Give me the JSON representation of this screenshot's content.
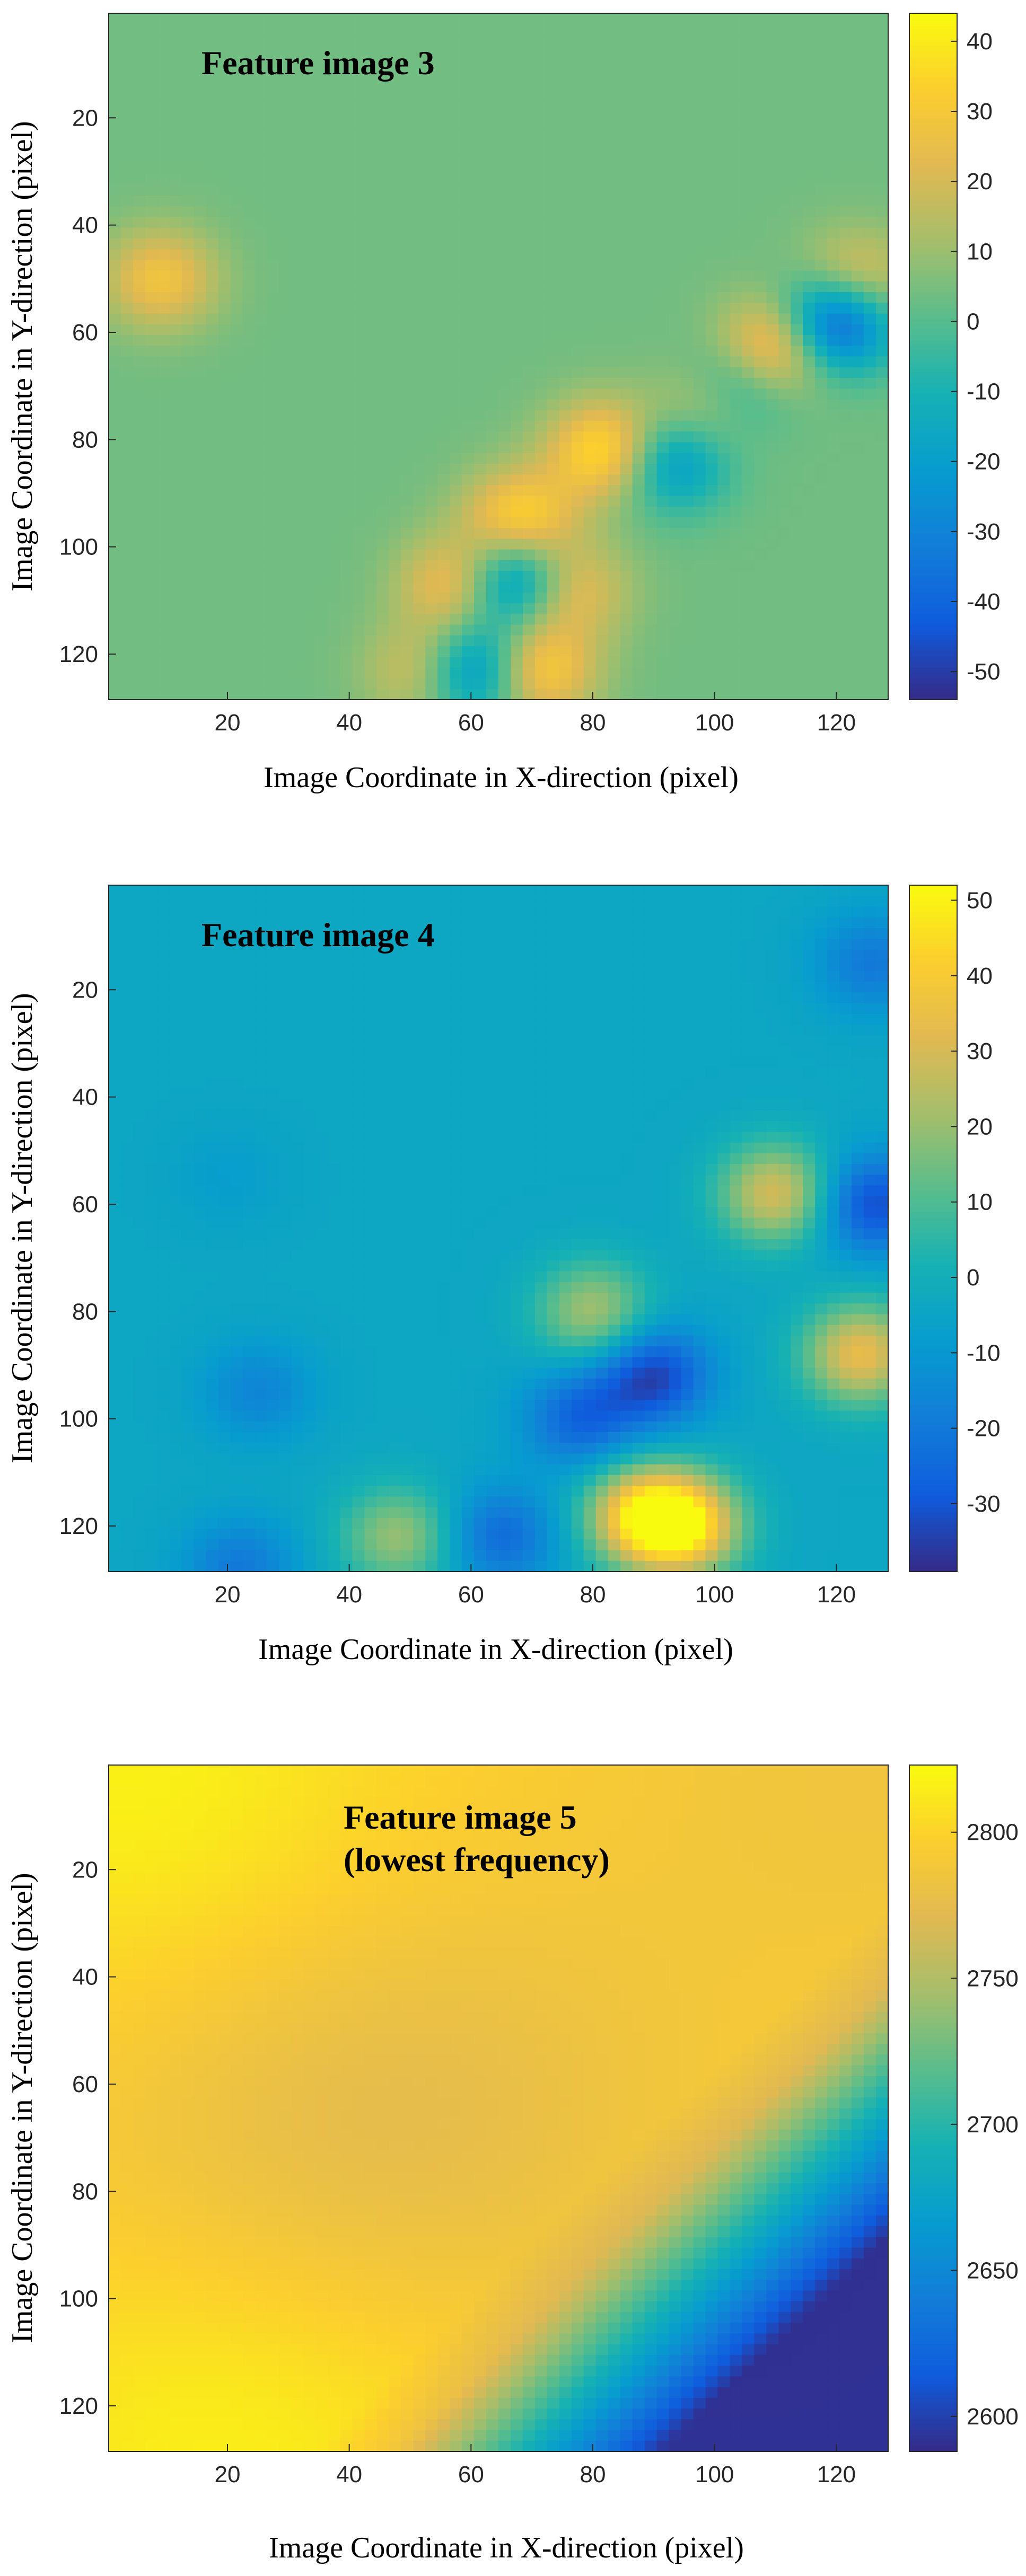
{
  "chart_data": [
    {
      "type": "heatmap",
      "title": "Feature image 3",
      "title_lines": [
        "Feature image 3"
      ],
      "xlabel": "Image Coordinate in X-direction (pixel)",
      "ylabel": "Image Coordinate in Y-direction (pixel)",
      "xlim": [
        0.5,
        128.5
      ],
      "ylim": [
        0.5,
        128.5
      ],
      "y_reversed": true,
      "xticks": [
        "20",
        "40",
        "60",
        "80",
        "100",
        "120"
      ],
      "xtick_values": [
        20,
        40,
        60,
        80,
        100,
        120
      ],
      "yticks": [
        "20",
        "40",
        "60",
        "80",
        "100",
        "120"
      ],
      "ytick_values": [
        20,
        40,
        60,
        80,
        100,
        120
      ],
      "colorbar": {
        "range": [
          -54,
          44
        ],
        "ticks": [
          "40",
          "30",
          "20",
          "10",
          "0",
          "-10",
          "-20",
          "-30",
          "-40",
          "-50"
        ],
        "tick_values": [
          40,
          30,
          20,
          10,
          0,
          -10,
          -20,
          -30,
          -40,
          -50
        ]
      },
      "colormap": "parula",
      "background_value": 4,
      "features": [
        {
          "x": 9,
          "y": 50,
          "value": 28
        },
        {
          "x": 68,
          "y": 95,
          "value": 36
        },
        {
          "x": 58,
          "y": 107,
          "value": 32
        },
        {
          "x": 82,
          "y": 82,
          "value": 38
        },
        {
          "x": 110,
          "y": 63,
          "value": 40
        },
        {
          "x": 123,
          "y": 51,
          "value": 30
        },
        {
          "x": 76,
          "y": 108,
          "value": 28
        },
        {
          "x": 71,
          "y": 123,
          "value": 34
        },
        {
          "x": 120,
          "y": 58,
          "value": -50
        },
        {
          "x": 67,
          "y": 106,
          "value": -38
        },
        {
          "x": 60,
          "y": 123,
          "value": -36
        },
        {
          "x": 93,
          "y": 84,
          "value": -25
        },
        {
          "x": 104,
          "y": 70,
          "value": -22
        },
        {
          "x": 53,
          "y": 123,
          "value": 28
        },
        {
          "x": 99,
          "y": 74,
          "value": 24
        }
      ]
    },
    {
      "type": "heatmap",
      "title": "Feature image 4",
      "title_lines": [
        "Feature image 4"
      ],
      "xlabel": "Image Coordinate in X-direction (pixel)",
      "ylabel": "Image Coordinate in Y-direction (pixel)",
      "xlim": [
        0.5,
        128.5
      ],
      "ylim": [
        0.5,
        128.5
      ],
      "y_reversed": true,
      "xticks": [
        "20",
        "40",
        "60",
        "80",
        "100",
        "120"
      ],
      "xtick_values": [
        20,
        40,
        60,
        80,
        100,
        120
      ],
      "yticks": [
        "20",
        "40",
        "60",
        "80",
        "100",
        "120"
      ],
      "ytick_values": [
        20,
        40,
        60,
        80,
        100,
        120
      ],
      "colorbar": {
        "range": [
          -39,
          52
        ],
        "ticks": [
          "50",
          "40",
          "30",
          "20",
          "10",
          "0",
          "-10",
          "-20",
          "-30"
        ],
        "tick_values": [
          50,
          40,
          30,
          20,
          10,
          0,
          -10,
          -20,
          -30
        ]
      },
      "colormap": "parula",
      "background_value": -4,
      "features": [
        {
          "x": 25,
          "y": 95,
          "value": -16
        },
        {
          "x": 20,
          "y": 55,
          "value": -8
        },
        {
          "x": 90,
          "y": 92,
          "value": -34
        },
        {
          "x": 78,
          "y": 100,
          "value": -26
        },
        {
          "x": 95,
          "y": 120,
          "value": 44
        },
        {
          "x": 88,
          "y": 118,
          "value": 38
        },
        {
          "x": 110,
          "y": 58,
          "value": 30
        },
        {
          "x": 124,
          "y": 88,
          "value": 34
        },
        {
          "x": 126,
          "y": 60,
          "value": -32
        },
        {
          "x": 126,
          "y": 15,
          "value": -20
        },
        {
          "x": 65,
          "y": 122,
          "value": -24
        },
        {
          "x": 48,
          "y": 122,
          "value": 20
        },
        {
          "x": 80,
          "y": 80,
          "value": 22
        },
        {
          "x": 22,
          "y": 128,
          "value": -20
        }
      ]
    },
    {
      "type": "heatmap",
      "title": "Feature image 5 (lowest frequency)",
      "title_lines": [
        "Feature image 5",
        "(lowest frequency)"
      ],
      "xlabel": "Image Coordinate in X-direction (pixel)",
      "ylabel": "Image Coordinate in Y-direction (pixel)",
      "xlim": [
        0.5,
        128.5
      ],
      "ylim": [
        0.5,
        128.5
      ],
      "y_reversed": true,
      "xticks": [
        "20",
        "40",
        "60",
        "80",
        "100",
        "120"
      ],
      "xtick_values": [
        20,
        40,
        60,
        80,
        100,
        120
      ],
      "yticks": [
        "20",
        "40",
        "60",
        "80",
        "100",
        "120"
      ],
      "ytick_values": [
        20,
        40,
        60,
        80,
        100,
        120
      ],
      "colorbar": {
        "range": [
          2588,
          2823
        ],
        "ticks": [
          "2800",
          "2750",
          "2700",
          "2650",
          "2600"
        ],
        "tick_values": [
          2800,
          2750,
          2700,
          2650,
          2600
        ]
      },
      "colormap": "parula",
      "background_value": 2795,
      "features": [
        {
          "x": 5,
          "y": 3,
          "value": 2820
        },
        {
          "x": 20,
          "y": 126,
          "value": 2820
        },
        {
          "x": 33,
          "y": 72,
          "value": 2778
        },
        {
          "x": 60,
          "y": 62,
          "value": 2784
        },
        {
          "x": 125,
          "y": 2,
          "value": 2785
        }
      ],
      "gradient": {
        "boundary_top": [
          128,
          42
        ],
        "boundary_bottom": [
          48,
          128
        ],
        "low_value": 2592,
        "edge_value": 2775
      }
    }
  ]
}
